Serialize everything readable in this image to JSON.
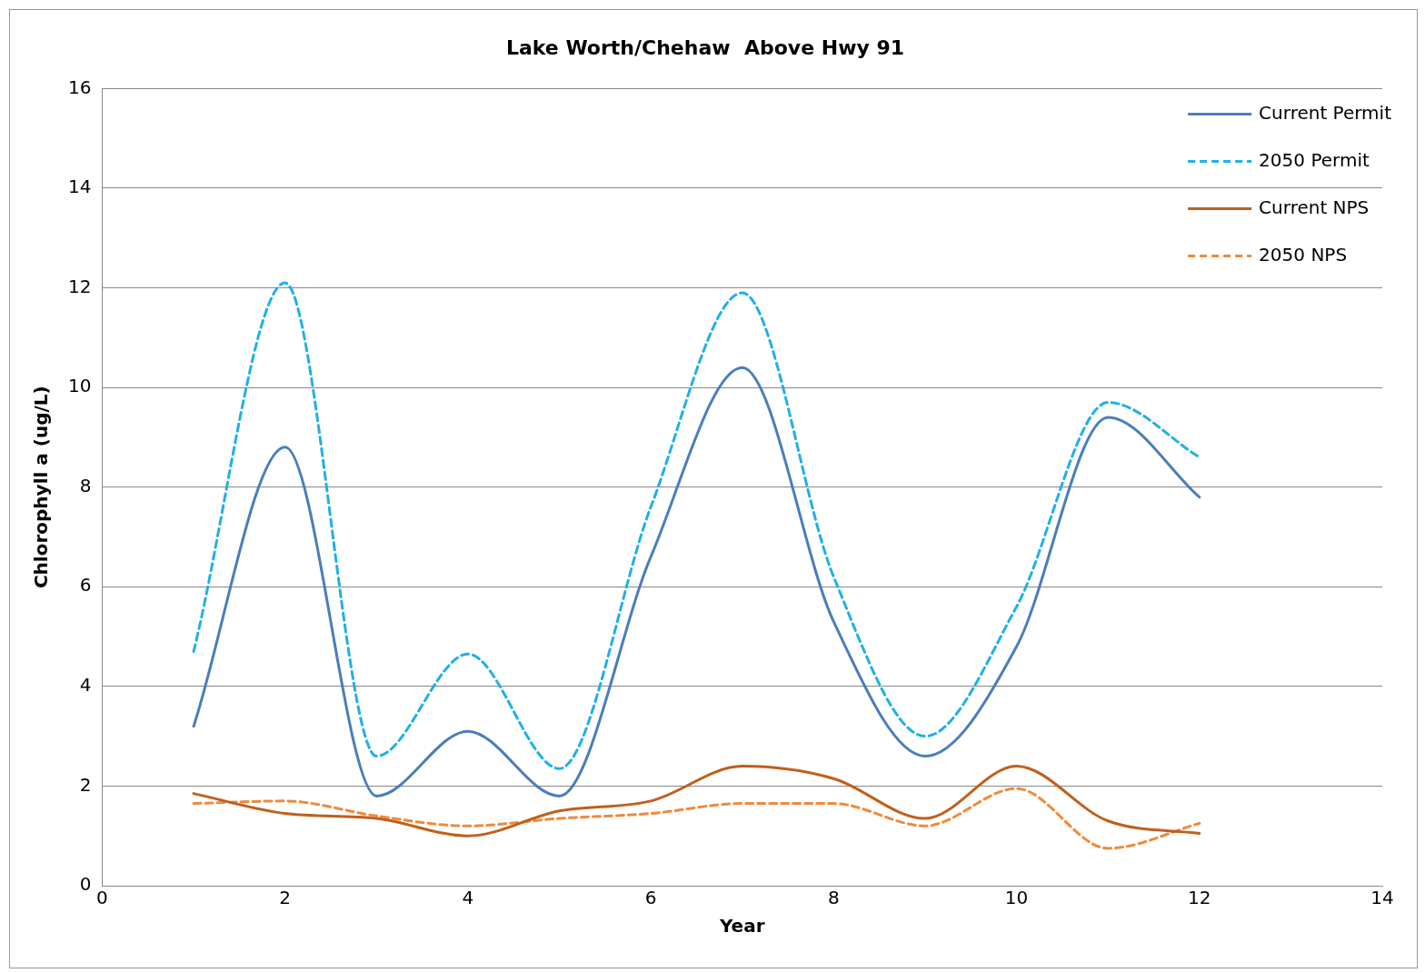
{
  "chart_data": {
    "type": "line",
    "title": "Lake Worth/Chehaw  Above Hwy 91",
    "xlabel": "Year",
    "ylabel": "Chlorophyll a (ug/L)",
    "x": [
      1,
      2,
      3,
      4,
      5,
      6,
      7,
      8,
      9,
      10,
      11,
      12
    ],
    "xlim": [
      0,
      14
    ],
    "xticks": [
      0,
      2,
      4,
      6,
      8,
      10,
      12,
      14
    ],
    "ylim": [
      0,
      16
    ],
    "yticks": [
      0,
      2,
      4,
      6,
      8,
      10,
      12,
      14,
      16
    ],
    "grid": "y",
    "legend": "top right",
    "marker": "none",
    "series": [
      {
        "name": "Current Permit",
        "color": "#4a7ebb",
        "line_style": "solid",
        "values": [
          3.2,
          8.8,
          1.8,
          3.1,
          1.8,
          6.6,
          10.4,
          5.3,
          2.6,
          4.8,
          9.4,
          7.8
        ]
      },
      {
        "name": "2050 Permit",
        "color": "#1fb0e8",
        "line_style": "dashed",
        "values": [
          4.7,
          12.1,
          2.6,
          4.65,
          2.35,
          7.6,
          11.9,
          6.2,
          3.0,
          5.6,
          9.7,
          8.6
        ]
      },
      {
        "name": "Current NPS",
        "color": "#c0601c",
        "line_style": "solid",
        "values": [
          1.85,
          1.45,
          1.35,
          1.0,
          1.5,
          1.7,
          2.4,
          2.15,
          1.35,
          2.4,
          1.3,
          1.05
        ]
      },
      {
        "name": "2050 NPS",
        "color": "#ef8a3c",
        "line_style": "dashed",
        "values": [
          1.65,
          1.7,
          1.4,
          1.2,
          1.35,
          1.45,
          1.65,
          1.65,
          1.2,
          1.95,
          0.75,
          1.25
        ]
      }
    ]
  }
}
